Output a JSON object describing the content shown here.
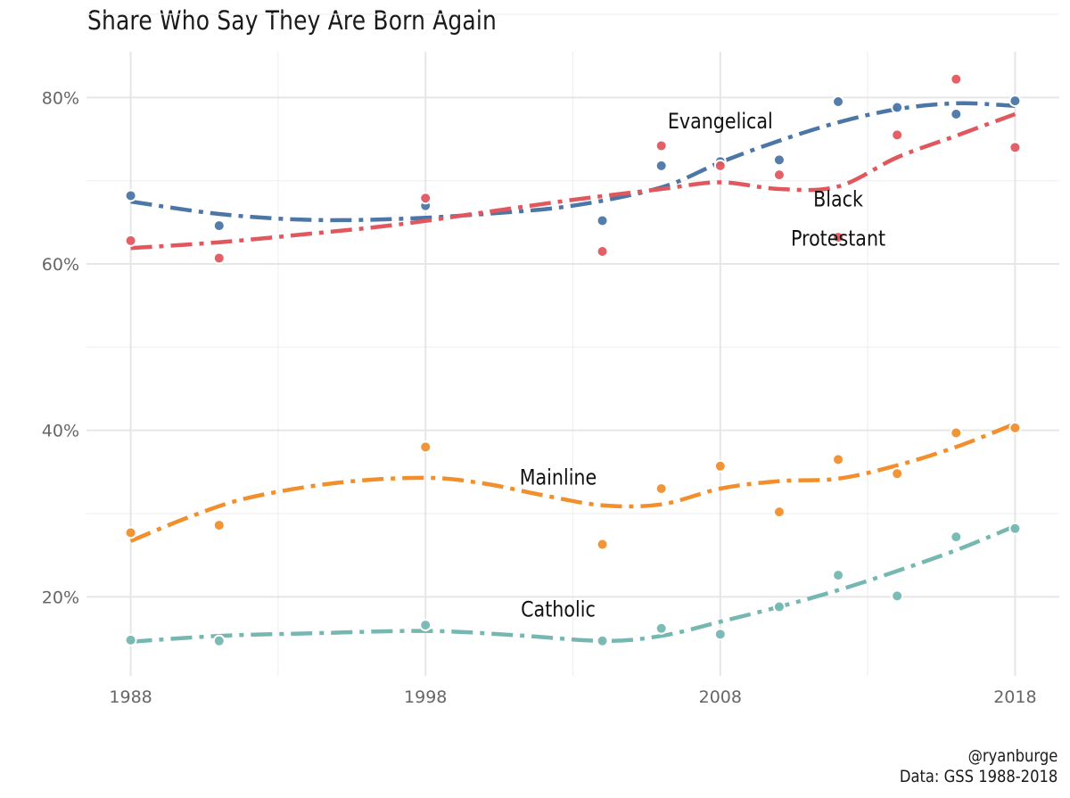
{
  "header": {
    "title": "Share Who Say They Are Born Again"
  },
  "caption": {
    "handle": "@ryanburge",
    "source": "Data: GSS 1988-2018"
  },
  "chart_data": {
    "type": "scatter",
    "title": "Share Who Say They Are Born Again",
    "xlabel": "",
    "ylabel": "",
    "xlim": [
      1986.5,
      2019.5
    ],
    "ylim": [
      10.5,
      85.5
    ],
    "x_ticks": [
      1988,
      1998,
      2008,
      2018
    ],
    "x_tick_labels": [
      "1988",
      "1998",
      "2008",
      "2018"
    ],
    "y_ticks": [
      20,
      40,
      60,
      80
    ],
    "y_tick_labels": [
      "20%",
      "40%",
      "60%",
      "80%"
    ],
    "grid": true,
    "legend": "none",
    "series": [
      {
        "name": "Evangelical",
        "color": "#4C76A6",
        "points": [
          [
            1988,
            68.2
          ],
          [
            1991,
            64.6
          ],
          [
            1998,
            67.0
          ],
          [
            2004,
            65.2
          ],
          [
            2006,
            71.8
          ],
          [
            2008,
            72.3
          ],
          [
            2010,
            72.5
          ],
          [
            2012,
            79.5
          ],
          [
            2014,
            78.8
          ],
          [
            2016,
            78.0
          ],
          [
            2018,
            79.6
          ]
        ],
        "trend": [
          [
            1988,
            67.5
          ],
          [
            1991,
            66.0
          ],
          [
            1994,
            65.3
          ],
          [
            1997,
            65.4
          ],
          [
            2000,
            66.0
          ],
          [
            2003,
            67.0
          ],
          [
            2006,
            69.2
          ],
          [
            2008,
            72.2
          ],
          [
            2010,
            74.8
          ],
          [
            2012,
            77.0
          ],
          [
            2014,
            78.6
          ],
          [
            2016,
            79.3
          ],
          [
            2018,
            79.0
          ]
        ]
      },
      {
        "name": "Black Protestant",
        "color": "#E0575E",
        "points": [
          [
            1988,
            62.8
          ],
          [
            1991,
            60.7
          ],
          [
            1998,
            67.9
          ],
          [
            2004,
            61.5
          ],
          [
            2006,
            74.2
          ],
          [
            2008,
            71.8
          ],
          [
            2010,
            70.7
          ],
          [
            2012,
            63.2
          ],
          [
            2014,
            75.5
          ],
          [
            2016,
            82.2
          ],
          [
            2018,
            74.0
          ]
        ],
        "trend": [
          [
            1988,
            61.9
          ],
          [
            1991,
            62.6
          ],
          [
            1994,
            63.6
          ],
          [
            1997,
            64.7
          ],
          [
            2000,
            66.2
          ],
          [
            2003,
            67.7
          ],
          [
            2006,
            69.0
          ],
          [
            2008,
            69.8
          ],
          [
            2010,
            69.0
          ],
          [
            2012,
            69.3
          ],
          [
            2014,
            72.8
          ],
          [
            2016,
            75.4
          ],
          [
            2018,
            78.0
          ]
        ]
      },
      {
        "name": "Mainline",
        "color": "#F28E2B",
        "points": [
          [
            1988,
            27.7
          ],
          [
            1991,
            28.6
          ],
          [
            1998,
            38.0
          ],
          [
            2004,
            26.3
          ],
          [
            2006,
            33.0
          ],
          [
            2008,
            35.7
          ],
          [
            2010,
            30.2
          ],
          [
            2012,
            36.5
          ],
          [
            2014,
            34.8
          ],
          [
            2016,
            39.7
          ],
          [
            2018,
            40.3
          ]
        ],
        "trend": [
          [
            1988,
            26.7
          ],
          [
            1990,
            29.6
          ],
          [
            1992,
            31.9
          ],
          [
            1995,
            33.7
          ],
          [
            1998,
            34.3
          ],
          [
            2000,
            33.6
          ],
          [
            2002,
            32.2
          ],
          [
            2004,
            31.0
          ],
          [
            2006,
            31.1
          ],
          [
            2008,
            33.0
          ],
          [
            2010,
            33.9
          ],
          [
            2012,
            34.2
          ],
          [
            2014,
            35.8
          ],
          [
            2016,
            38.0
          ],
          [
            2018,
            40.8
          ]
        ]
      },
      {
        "name": "Catholic",
        "color": "#76B7B2",
        "points": [
          [
            1988,
            14.8
          ],
          [
            1991,
            14.7
          ],
          [
            1998,
            16.6
          ],
          [
            2004,
            14.7
          ],
          [
            2006,
            16.2
          ],
          [
            2008,
            15.5
          ],
          [
            2010,
            18.8
          ],
          [
            2012,
            22.6
          ],
          [
            2014,
            20.1
          ],
          [
            2016,
            27.2
          ],
          [
            2018,
            28.2
          ]
        ],
        "trend": [
          [
            1988,
            14.6
          ],
          [
            1991,
            15.3
          ],
          [
            1994,
            15.6
          ],
          [
            1998,
            15.9
          ],
          [
            2001,
            15.4
          ],
          [
            2004,
            14.7
          ],
          [
            2006,
            15.3
          ],
          [
            2008,
            17.0
          ],
          [
            2010,
            18.8
          ],
          [
            2012,
            20.8
          ],
          [
            2014,
            23.1
          ],
          [
            2016,
            25.6
          ],
          [
            2018,
            28.5
          ]
        ]
      }
    ],
    "annotations": [
      {
        "text": "Evangelical",
        "x": 2008,
        "y": 76.3
      },
      {
        "text": "Black",
        "x": 2012,
        "y": 66.9
      },
      {
        "text": "Protestant",
        "x": 2012,
        "y": 62.2
      },
      {
        "text": "Mainline",
        "x": 2002.5,
        "y": 33.5
      },
      {
        "text": "Catholic",
        "x": 2002.5,
        "y": 17.6
      }
    ]
  }
}
